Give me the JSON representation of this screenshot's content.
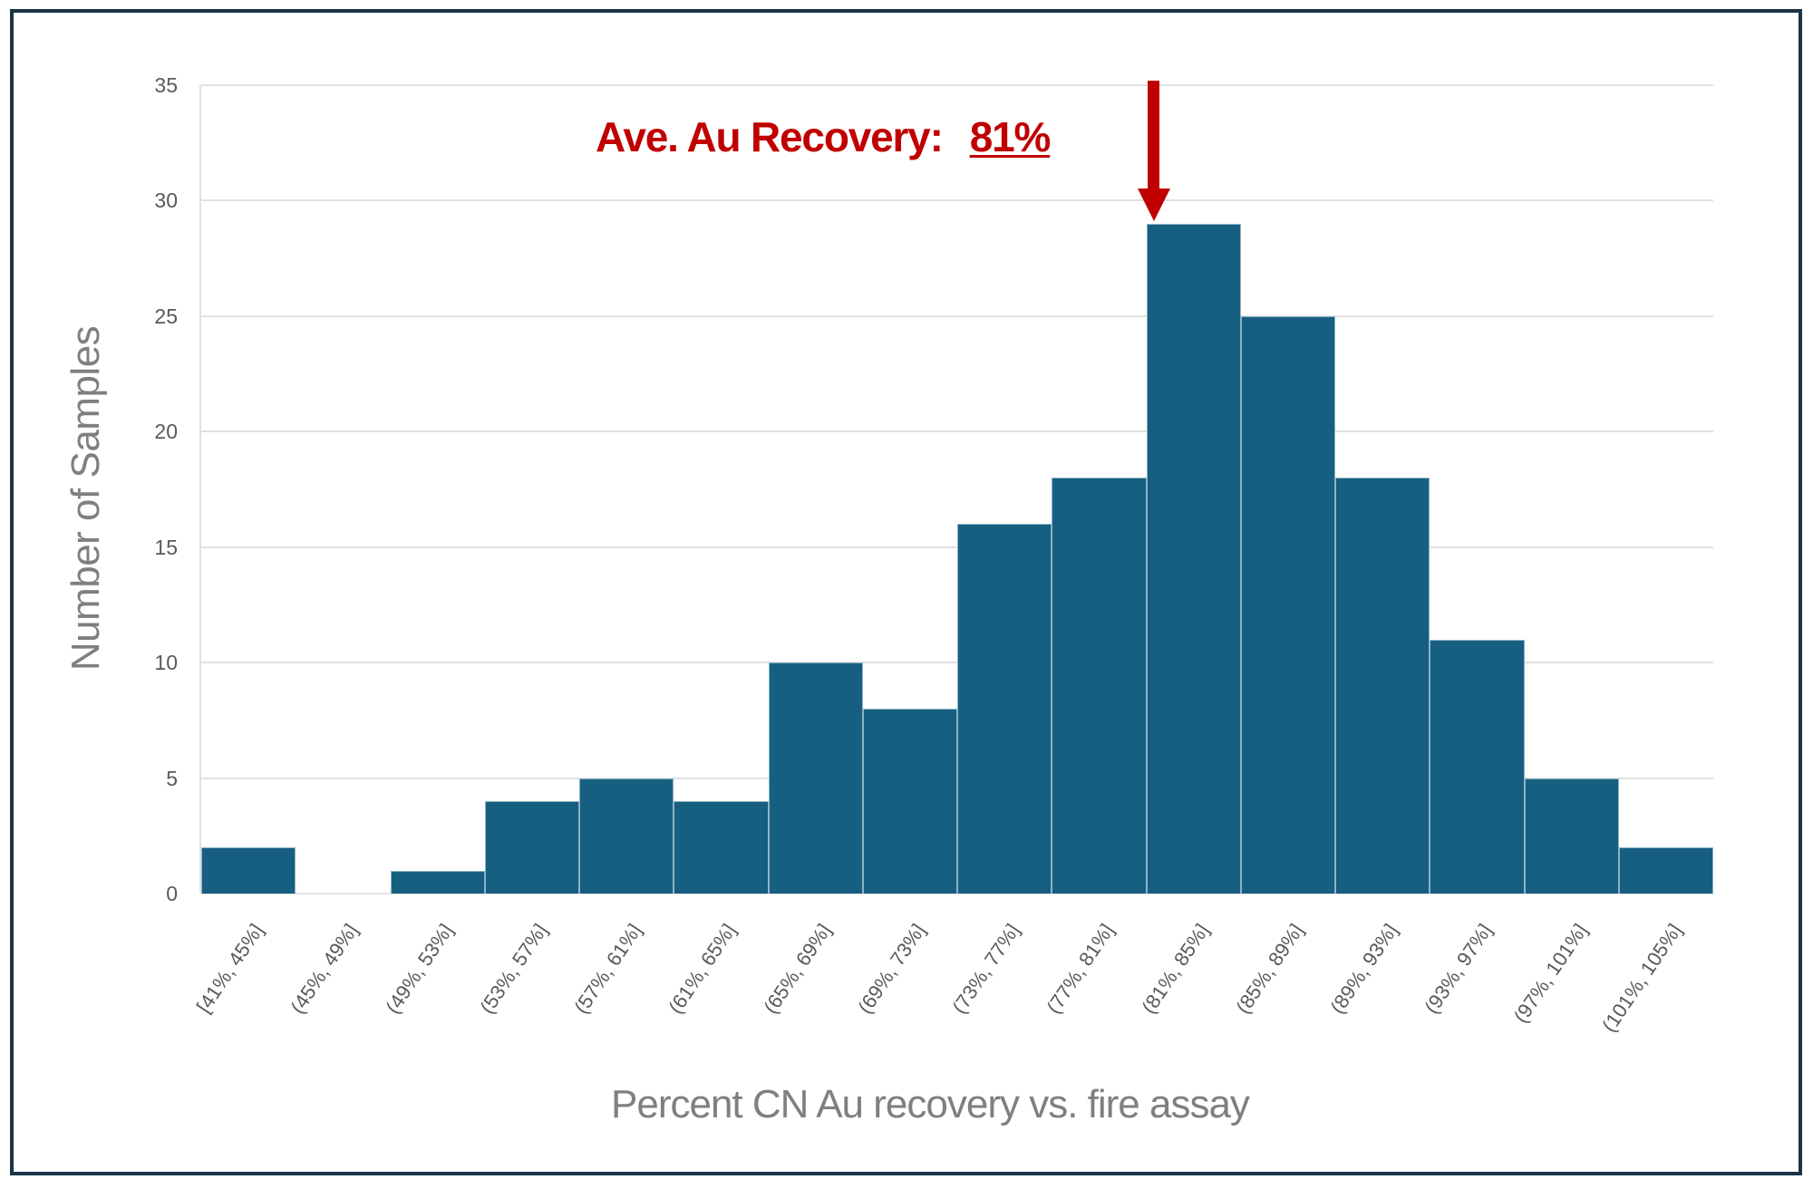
{
  "chart_data": {
    "type": "bar",
    "title": "",
    "xlabel": "Percent CN Au recovery vs. fire assay",
    "ylabel": "Number of Samples",
    "ylim": [
      0,
      35
    ],
    "yticks": [
      0,
      5,
      10,
      15,
      20,
      25,
      30,
      35
    ],
    "grid": true,
    "legend": null,
    "categories": [
      "[41%, 45%]",
      "(45%, 49%]",
      "(49%, 53%]",
      "(53%, 57%]",
      "(57%, 61%]",
      "(61%, 65%]",
      "(65%, 69%]",
      "(69%, 73%]",
      "(73%, 77%]",
      "(77%, 81%]",
      "(81%, 85%]",
      "(85%, 89%]",
      "(89%, 93%]",
      "(93%, 97%]",
      "(97%, 101%]",
      "(101%, 105%]"
    ],
    "values": [
      2,
      0,
      1,
      4,
      5,
      4,
      10,
      8,
      16,
      18,
      29,
      25,
      18,
      11,
      5,
      2
    ],
    "bar_color": "#175f80",
    "annotations": [
      {
        "text": "Ave. Au Recovery:",
        "value": "81%",
        "color": "#c00000",
        "arrow_points_to": "(81%, 85%]"
      }
    ]
  },
  "annotation": {
    "label": "Ave. Au Recovery:",
    "value": "81%"
  },
  "axes": {
    "x_title": "Percent CN Au recovery vs. fire assay",
    "y_title": "Number of Samples"
  }
}
